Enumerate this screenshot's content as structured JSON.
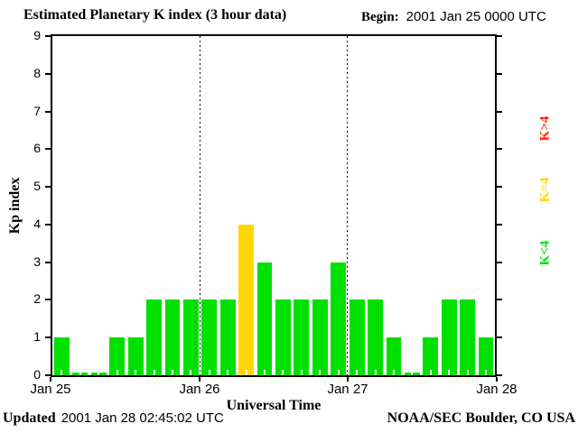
{
  "header": {
    "title": "Estimated Planetary K index (3 hour data)",
    "begin_label": "Begin:",
    "begin_value": "2001 Jan 25 0000 UTC"
  },
  "footer": {
    "updated_label": "Updated",
    "updated_value": "2001 Jan 28 02:45:02 UTC",
    "credit": "NOAA/SEC Boulder, CO USA"
  },
  "chart_data": {
    "type": "bar",
    "title": "Estimated Planetary K index (3 hour data)",
    "xlabel": "Universal Time",
    "ylabel": "Kp index",
    "begin": "2001 Jan 25 0000 UTC",
    "interval_hours": 3,
    "ylim": [
      0,
      9
    ],
    "y_ticks": [
      0,
      1,
      2,
      3,
      4,
      5,
      6,
      7,
      8,
      9
    ],
    "x_tick_labels": [
      "Jan 25",
      "Jan 26",
      "Jan 27",
      "Jan 28"
    ],
    "grid": "vertical-dotted-day-boundaries",
    "legend_position": "right-rotated",
    "days": [
      {
        "date": "Jan 25",
        "values": [
          1,
          0,
          0,
          1,
          1,
          2,
          2,
          2
        ]
      },
      {
        "date": "Jan 26",
        "values": [
          2,
          2,
          4,
          3,
          2,
          2,
          2,
          3
        ]
      },
      {
        "date": "Jan 27",
        "values": [
          2,
          2,
          1,
          0,
          1,
          2,
          2,
          1
        ]
      }
    ],
    "colors": {
      "k_below_4": "#00E000",
      "k_equal_4": "#FFD700",
      "k_above_4": "#FF2000"
    },
    "legend": [
      {
        "label": "K>4",
        "class": "k_above_4"
      },
      {
        "label": "K=4",
        "class": "k_equal_4"
      },
      {
        "label": "K<4",
        "class": "k_below_4"
      }
    ]
  }
}
